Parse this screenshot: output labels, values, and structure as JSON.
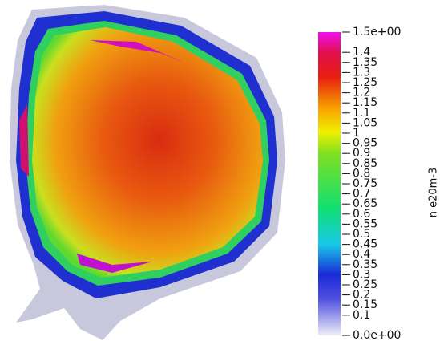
{
  "colorbar": {
    "title": "n e20m-3",
    "range": [
      0,
      1.5
    ],
    "ticks": [
      {
        "value": 0,
        "label": "0.0e+00"
      },
      0.1,
      0.15,
      0.2,
      0.25,
      0.3,
      0.35,
      0.4,
      0.45,
      0.5,
      0.55,
      0.6,
      0.65,
      0.7,
      0.75,
      0.8,
      0.85,
      0.9,
      0.95,
      1,
      1.05,
      1.1,
      1.15,
      1.2,
      1.25,
      1.3,
      1.35,
      1.4,
      {
        "value": 1.5,
        "label": "1.5e+00"
      }
    ]
  }
}
